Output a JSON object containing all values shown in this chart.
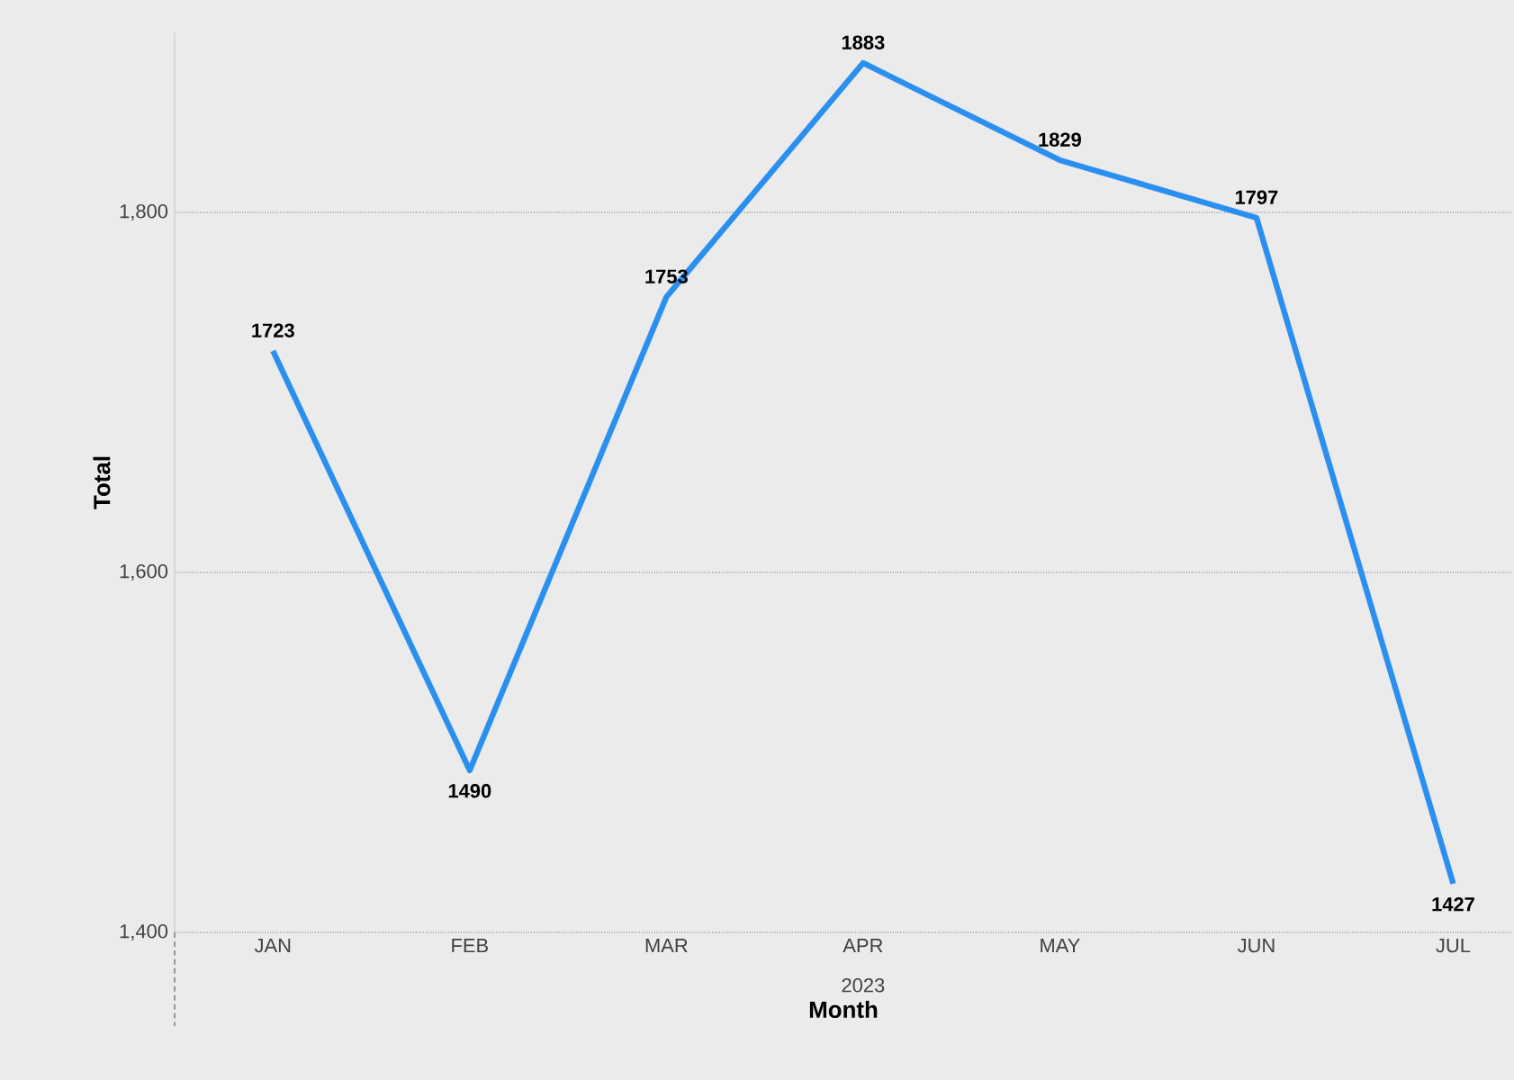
{
  "chart_data": {
    "type": "line",
    "xlabel": "Month",
    "ylabel": "Total",
    "categories": [
      "JAN",
      "FEB",
      "MAR",
      "APR",
      "MAY",
      "JUN",
      "JUL"
    ],
    "values": [
      1723,
      1490,
      1753,
      1883,
      1829,
      1797,
      1427
    ],
    "color": "#2b8ff0",
    "ylim": [
      1400,
      1900
    ],
    "yticks": [
      {
        "value": 1400,
        "label": "1,400"
      },
      {
        "value": 1600,
        "label": "1,600"
      },
      {
        "value": 1800,
        "label": "1,800"
      }
    ],
    "grid": "y",
    "data_labels": true,
    "line_style": "solid",
    "marker": "none",
    "annotations": [
      "2023"
    ]
  }
}
